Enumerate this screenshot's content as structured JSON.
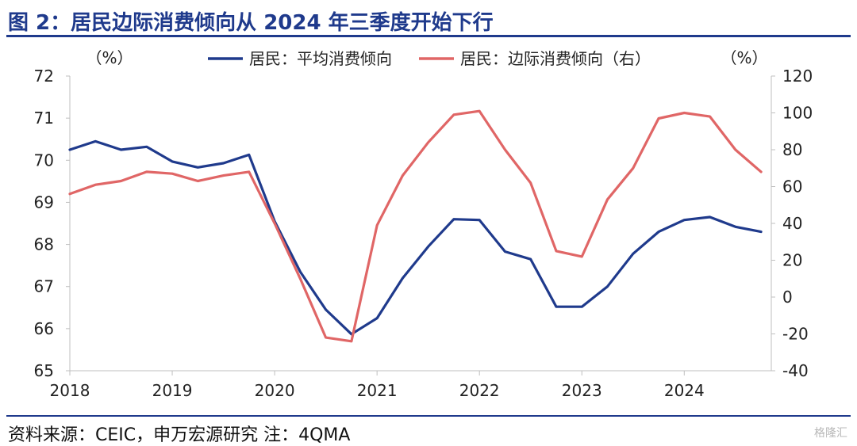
{
  "title": "图 2：居民边际消费倾向从 2024 年三季度开始下行",
  "source": "资料来源：CEIC，申万宏源研究  注：4QMA",
  "watermark": "格隆汇",
  "chart_data": {
    "type": "line",
    "x_ticks": [
      "2018",
      "2019",
      "2020",
      "2021",
      "2022",
      "2023",
      "2024"
    ],
    "left_unit": "（%）",
    "right_unit": "（%）",
    "ylim_left": [
      65,
      72
    ],
    "yticks_left": [
      65,
      66,
      67,
      68,
      69,
      70,
      71,
      72
    ],
    "ylim_right": [
      -40,
      120
    ],
    "yticks_right": [
      -40,
      -20,
      0,
      20,
      40,
      60,
      80,
      100,
      120
    ],
    "legend_position": "top",
    "grid": false,
    "series": [
      {
        "name": "居民：平均消费倾向",
        "axis": "left",
        "color": "#1f3a8c",
        "x": [
          2018.0,
          2018.25,
          2018.5,
          2018.75,
          2019.0,
          2019.25,
          2019.5,
          2019.75,
          2020.0,
          2020.25,
          2020.5,
          2020.75,
          2021.0,
          2021.25,
          2021.5,
          2021.75,
          2022.0,
          2022.25,
          2022.5,
          2022.75,
          2023.0,
          2023.25,
          2023.5,
          2023.75,
          2024.0,
          2024.25,
          2024.5,
          2024.75
        ],
        "values": [
          70.25,
          70.45,
          70.25,
          70.32,
          69.97,
          69.83,
          69.93,
          70.13,
          68.55,
          67.35,
          66.45,
          65.87,
          66.25,
          67.2,
          67.95,
          68.6,
          68.58,
          67.83,
          67.65,
          66.52,
          66.52,
          67.0,
          67.78,
          68.3,
          68.58,
          68.65,
          68.42,
          68.3
        ]
      },
      {
        "name": "居民：边际消费倾向（右）",
        "axis": "right",
        "color": "#e06666",
        "x": [
          2018.0,
          2018.25,
          2018.5,
          2018.75,
          2019.0,
          2019.25,
          2019.5,
          2019.75,
          2020.0,
          2020.25,
          2020.5,
          2020.75,
          2021.0,
          2021.25,
          2021.5,
          2021.75,
          2022.0,
          2022.25,
          2022.5,
          2022.75,
          2023.0,
          2023.25,
          2023.5,
          2023.75,
          2024.0,
          2024.25,
          2024.5,
          2024.75
        ],
        "values": [
          56,
          61,
          63,
          68,
          67,
          63,
          66,
          68,
          40,
          10,
          -22,
          -24,
          39,
          66,
          84,
          99,
          101,
          80,
          62,
          25,
          22,
          53,
          70,
          97,
          100,
          98,
          80,
          68
        ]
      }
    ]
  }
}
